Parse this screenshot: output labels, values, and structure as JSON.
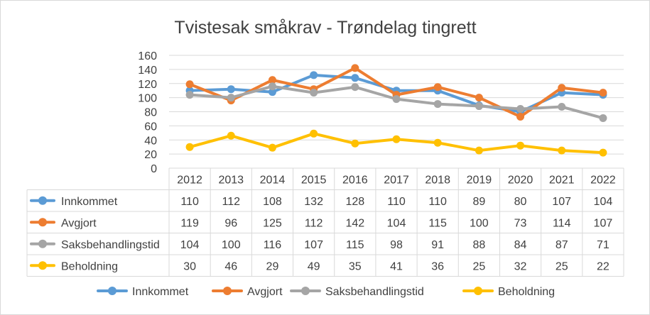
{
  "chart_data": {
    "type": "line",
    "title": "Tvistesak småkrav - Trøndelag tingrett",
    "categories": [
      "2012",
      "2013",
      "2014",
      "2015",
      "2016",
      "2017",
      "2018",
      "2019",
      "2020",
      "2021",
      "2022"
    ],
    "ylim": [
      0,
      160
    ],
    "yticks": [
      0,
      20,
      40,
      60,
      80,
      100,
      120,
      140,
      160
    ],
    "grid": true,
    "legend_position": "bottom",
    "data_table": true,
    "series": [
      {
        "name": "Innkommet",
        "color": "#5B9BD5",
        "values": [
          110,
          112,
          108,
          132,
          128,
          110,
          110,
          89,
          80,
          107,
          104
        ]
      },
      {
        "name": "Avgjort",
        "color": "#ED7D31",
        "values": [
          119,
          96,
          125,
          112,
          142,
          104,
          115,
          100,
          73,
          114,
          107
        ]
      },
      {
        "name": "Saksbehandlingstid",
        "color": "#A5A5A5",
        "values": [
          104,
          100,
          116,
          107,
          115,
          98,
          91,
          88,
          84,
          87,
          71
        ]
      },
      {
        "name": "Beholdning",
        "color": "#FFC000",
        "values": [
          30,
          46,
          29,
          49,
          35,
          41,
          36,
          25,
          32,
          25,
          22
        ]
      }
    ]
  }
}
